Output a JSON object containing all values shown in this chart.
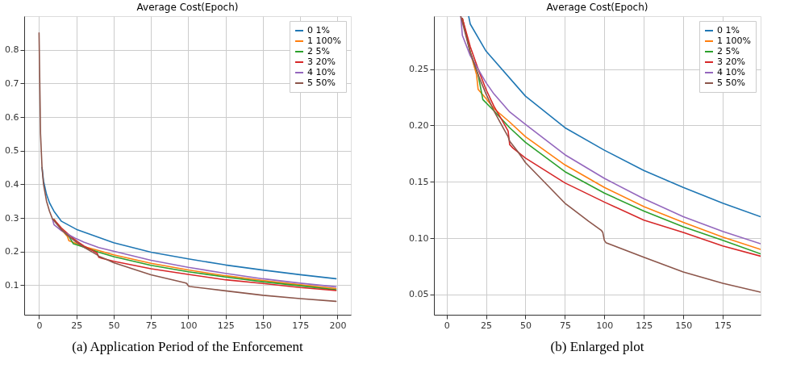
{
  "chart_data": [
    {
      "type": "line",
      "title": "Average Cost(Epoch)",
      "annotations": [
        "(a) Application Period of the Enforcement"
      ],
      "xlim": [
        -9.95,
        208.95
      ],
      "ylim": [
        0.012,
        0.9
      ],
      "xticks": [
        0,
        25,
        50,
        75,
        100,
        125,
        150,
        175,
        200
      ],
      "yticks": [
        0.1,
        0.2,
        0.3,
        0.4,
        0.5,
        0.6,
        0.7,
        0.8
      ],
      "grid": true,
      "legend": "top right",
      "line_style": "solid",
      "marker": "none",
      "series": [
        {
          "name": "0 1%",
          "color": "#1f77b4",
          "x": [
            2,
            3,
            5,
            7,
            10,
            15,
            25,
            50,
            75,
            100,
            125,
            150,
            175,
            199
          ],
          "values": [
            0.45,
            0.41,
            0.37,
            0.345,
            0.32,
            0.29,
            0.266,
            0.226,
            0.198,
            0.178,
            0.16,
            0.145,
            0.131,
            0.119
          ]
        },
        {
          "name": "1 100%",
          "color": "#ff7f0e",
          "x": [
            10,
            15,
            19,
            20,
            25,
            30,
            40,
            50,
            75,
            100,
            125,
            150,
            175,
            199
          ],
          "values": [
            0.295,
            0.265,
            0.245,
            0.232,
            0.224,
            0.215,
            0.203,
            0.19,
            0.165,
            0.145,
            0.128,
            0.114,
            0.101,
            0.09
          ]
        },
        {
          "name": "2 5%",
          "color": "#2ca02c",
          "x": [
            10,
            15,
            20,
            23,
            30,
            40,
            50,
            75,
            100,
            125,
            150,
            175,
            199
          ],
          "values": [
            0.295,
            0.265,
            0.245,
            0.223,
            0.213,
            0.198,
            0.185,
            0.159,
            0.14,
            0.124,
            0.11,
            0.098,
            0.086
          ]
        },
        {
          "name": "3 20%",
          "color": "#d62728",
          "x": [
            10,
            15,
            20,
            25,
            30,
            35,
            39,
            40,
            42,
            50,
            75,
            100,
            125,
            150,
            175,
            199
          ],
          "values": [
            0.295,
            0.27,
            0.25,
            0.232,
            0.217,
            0.205,
            0.195,
            0.183,
            0.18,
            0.171,
            0.149,
            0.132,
            0.116,
            0.105,
            0.093,
            0.084
          ]
        },
        {
          "name": "4 10%",
          "color": "#9467bd",
          "x": [
            9,
            10,
            15,
            20,
            25,
            30,
            40,
            50,
            75,
            100,
            125,
            150,
            175,
            199
          ],
          "values": [
            0.297,
            0.28,
            0.262,
            0.25,
            0.238,
            0.228,
            0.212,
            0.201,
            0.174,
            0.153,
            0.135,
            0.119,
            0.106,
            0.095
          ]
        },
        {
          "name": "5 50%",
          "color": "#8c564b",
          "x": [
            0,
            1,
            2,
            3,
            5,
            7,
            9,
            15,
            20,
            25,
            30,
            35,
            39,
            40,
            45,
            50,
            75,
            90,
            98,
            99,
            100,
            101,
            125,
            150,
            175,
            199
          ],
          "values": [
            0.85,
            0.55,
            0.45,
            0.4,
            0.35,
            0.32,
            0.297,
            0.265,
            0.245,
            0.228,
            0.213,
            0.2,
            0.19,
            0.186,
            0.177,
            0.167,
            0.131,
            0.115,
            0.107,
            0.105,
            0.098,
            0.096,
            0.083,
            0.07,
            0.06,
            0.052
          ]
        }
      ]
    },
    {
      "type": "line",
      "title": "Average Cost(Epoch)",
      "annotations": [
        "(b) Enlarged plot"
      ],
      "xlim": [
        -8,
        199
      ],
      "ylim": [
        0.032,
        0.297
      ],
      "xticks": [
        0,
        25,
        50,
        75,
        100,
        125,
        150,
        175
      ],
      "yticks": [
        0.05,
        {
          "value": 0.1,
          "label": "0.10"
        },
        0.15,
        {
          "value": 0.2,
          "label": "0.20"
        },
        0.25
      ],
      "grid": true,
      "legend": "top right",
      "line_style": "solid",
      "marker": "none",
      "series": [
        {
          "name": "0 1%",
          "color": "#1f77b4",
          "x": [
            14,
            15,
            25,
            50,
            75,
            100,
            125,
            150,
            175,
            199
          ],
          "values": [
            0.297,
            0.29,
            0.266,
            0.226,
            0.198,
            0.178,
            0.16,
            0.145,
            0.131,
            0.119
          ]
        },
        {
          "name": "1 100%",
          "color": "#ff7f0e",
          "x": [
            10,
            15,
            19,
            20,
            25,
            30,
            40,
            50,
            75,
            100,
            125,
            150,
            175,
            199
          ],
          "values": [
            0.295,
            0.265,
            0.245,
            0.232,
            0.224,
            0.215,
            0.203,
            0.19,
            0.165,
            0.145,
            0.128,
            0.114,
            0.101,
            0.09
          ]
        },
        {
          "name": "2 5%",
          "color": "#2ca02c",
          "x": [
            10,
            15,
            20,
            23,
            30,
            40,
            50,
            75,
            100,
            125,
            150,
            175,
            199
          ],
          "values": [
            0.295,
            0.265,
            0.245,
            0.223,
            0.213,
            0.198,
            0.185,
            0.159,
            0.14,
            0.124,
            0.11,
            0.098,
            0.086
          ]
        },
        {
          "name": "3 20%",
          "color": "#d62728",
          "x": [
            10,
            15,
            20,
            25,
            30,
            35,
            39,
            40,
            42,
            50,
            75,
            100,
            125,
            150,
            175,
            199
          ],
          "values": [
            0.295,
            0.27,
            0.25,
            0.232,
            0.217,
            0.205,
            0.195,
            0.183,
            0.18,
            0.171,
            0.149,
            0.132,
            0.116,
            0.105,
            0.093,
            0.084
          ]
        },
        {
          "name": "4 10%",
          "color": "#9467bd",
          "x": [
            9,
            10,
            15,
            20,
            25,
            30,
            40,
            50,
            75,
            100,
            125,
            150,
            175,
            199
          ],
          "values": [
            0.297,
            0.28,
            0.262,
            0.25,
            0.238,
            0.228,
            0.212,
            0.201,
            0.174,
            0.153,
            0.135,
            0.119,
            0.106,
            0.095
          ]
        },
        {
          "name": "5 50%",
          "color": "#8c564b",
          "x": [
            9,
            15,
            20,
            25,
            30,
            35,
            39,
            40,
            45,
            50,
            75,
            90,
            98,
            99,
            100,
            101,
            125,
            150,
            175,
            199
          ],
          "values": [
            0.297,
            0.265,
            0.245,
            0.228,
            0.213,
            0.2,
            0.19,
            0.186,
            0.177,
            0.167,
            0.131,
            0.115,
            0.107,
            0.105,
            0.098,
            0.096,
            0.083,
            0.07,
            0.06,
            0.052
          ]
        }
      ]
    }
  ]
}
